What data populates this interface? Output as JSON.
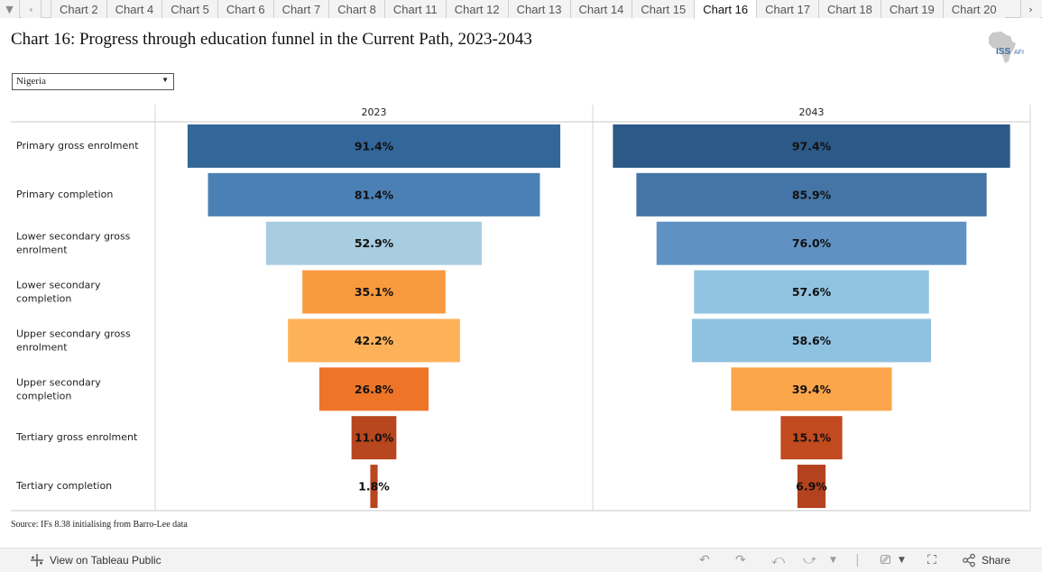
{
  "tabbar": {
    "tabs": [
      {
        "label": "Chart 2"
      },
      {
        "label": "Chart 4"
      },
      {
        "label": "Chart 5"
      },
      {
        "label": "Chart 6"
      },
      {
        "label": "Chart 7"
      },
      {
        "label": "Chart 8"
      },
      {
        "label": "Chart 11"
      },
      {
        "label": "Chart 12"
      },
      {
        "label": "Chart 13"
      },
      {
        "label": "Chart 14"
      },
      {
        "label": "Chart 15"
      },
      {
        "label": "Chart 16"
      },
      {
        "label": "Chart 17"
      },
      {
        "label": "Chart 18"
      },
      {
        "label": "Chart 19"
      },
      {
        "label": "Chart 20"
      }
    ],
    "active_tab": "Chart 16",
    "menu_icon": "caret-down-icon",
    "prev_icon": "chevron-left-icon",
    "next_icon": "chevron-right-icon"
  },
  "header": {
    "title": "Chart 16: Progress through education funnel in the Current Path, 2023-2043",
    "logo_text": "ISS",
    "logo_sub": "AFI"
  },
  "filter": {
    "selected": "Nigeria",
    "icon": "caret-down-icon"
  },
  "source": "Source: IFs 8.38 initialising from Barro-Lee data",
  "toolbar": {
    "view_label": "View on Tableau Public",
    "share_label": "Share"
  },
  "chart_data": {
    "type": "bar",
    "subtype": "funnel",
    "categories": [
      "Primary gross enrolment",
      "Primary completion",
      "Lower secondary gross enrolment",
      "Lower secondary completion",
      "Upper secondary gross enrolment",
      "Upper secondary completion",
      "Tertiary gross enrolment",
      "Tertiary completion"
    ],
    "series": [
      {
        "name": "2023",
        "values": [
          91.4,
          81.4,
          52.9,
          35.1,
          42.2,
          26.8,
          11.0,
          1.8
        ],
        "labels": [
          "91.4%",
          "81.4%",
          "52.9%",
          "35.1%",
          "42.2%",
          "26.8%",
          "11.0%",
          "1.8%"
        ]
      },
      {
        "name": "2043",
        "values": [
          97.4,
          85.9,
          76.0,
          57.6,
          58.6,
          39.4,
          15.1,
          6.9
        ],
        "labels": [
          "97.4%",
          "85.9%",
          "76.0%",
          "57.6%",
          "58.6%",
          "39.4%",
          "15.1%",
          "6.9%"
        ]
      }
    ],
    "value_unit": "%",
    "xlim": [
      0,
      100
    ],
    "color_scale": [
      "#b5421f",
      "#f0762a",
      "#fda44a",
      "#a9cddf",
      "#5e93c4",
      "#2c5a8c"
    ]
  }
}
